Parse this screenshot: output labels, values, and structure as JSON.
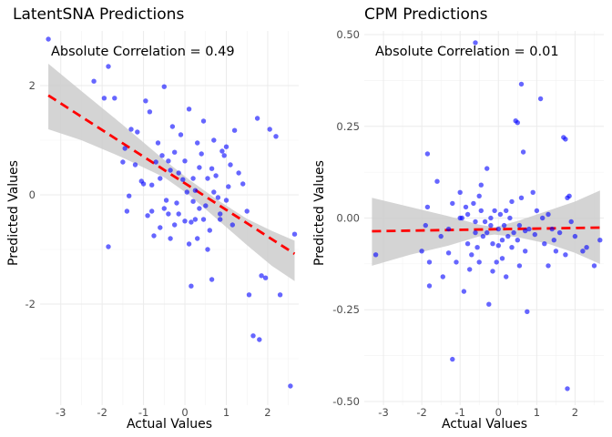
{
  "chart_data": [
    {
      "type": "scatter",
      "title": "LatentSNA Predictions",
      "xlabel": "Actual Values",
      "ylabel": "Predicted Values",
      "annotation": "Absolute Correlation = 0.49",
      "xlim": [
        -3.5,
        2.75
      ],
      "ylim": [
        -3.85,
        3.0
      ],
      "x_ticks": [
        -3,
        -2,
        -1,
        0,
        1,
        2
      ],
      "y_ticks": [
        -2,
        0,
        2
      ],
      "grid": true,
      "point_color": "#0000ff",
      "fit_line": {
        "color": "#ff0000",
        "style": "dashed",
        "x": [
          -3.3,
          2.65
        ],
        "y": [
          1.82,
          -1.08
        ]
      },
      "confidence_band": {
        "color": "#cccccc",
        "x": [
          -3.3,
          -2.5,
          -1.5,
          -0.5,
          0.1,
          0.8,
          1.5,
          2.1,
          2.65
        ],
        "upper": [
          2.4,
          1.9,
          1.28,
          0.64,
          0.28,
          -0.1,
          -0.44,
          -0.66,
          -0.84
        ],
        "lower": [
          1.2,
          1.0,
          0.68,
          0.32,
          0.0,
          -0.46,
          -0.92,
          -1.3,
          -1.58
        ]
      },
      "points": [
        [
          -3.3,
          2.85
        ],
        [
          -2.2,
          2.08
        ],
        [
          -1.95,
          1.77
        ],
        [
          -1.85,
          2.35
        ],
        [
          -1.7,
          1.77
        ],
        [
          -1.45,
          0.85
        ],
        [
          -1.3,
          1.2
        ],
        [
          -1.15,
          1.15
        ],
        [
          -1.05,
          0.25
        ],
        [
          -0.95,
          1.72
        ],
        [
          -0.85,
          1.52
        ],
        [
          -0.8,
          0.18
        ],
        [
          -0.7,
          0.6
        ],
        [
          -0.65,
          0.95
        ],
        [
          -0.6,
          0.3
        ],
        [
          -0.55,
          0.72
        ],
        [
          -0.5,
          1.98
        ],
        [
          -0.45,
          -0.1
        ],
        [
          -0.4,
          0.62
        ],
        [
          -0.35,
          0.45
        ],
        [
          -0.3,
          1.25
        ],
        [
          -0.25,
          0.78
        ],
        [
          -0.2,
          -0.15
        ],
        [
          -0.15,
          0.4
        ],
        [
          -0.1,
          1.1
        ],
        [
          -0.05,
          0.28
        ],
        [
          0.0,
          0.62
        ],
        [
          0.05,
          0.05
        ],
        [
          0.1,
          1.57
        ],
        [
          0.15,
          -0.5
        ],
        [
          0.2,
          0.3
        ],
        [
          0.25,
          -0.45
        ],
        [
          0.3,
          0.95
        ],
        [
          0.35,
          0.5
        ],
        [
          0.4,
          0.75
        ],
        [
          0.45,
          1.35
        ],
        [
          0.5,
          -0.2
        ],
        [
          0.55,
          0.3
        ],
        [
          0.6,
          -0.65
        ],
        [
          0.65,
          0.48
        ],
        [
          0.7,
          1.0
        ],
        [
          0.75,
          0.35
        ],
        [
          0.8,
          -0.05
        ],
        [
          0.85,
          -0.35
        ],
        [
          0.9,
          0.8
        ],
        [
          0.95,
          0.72
        ],
        [
          1.0,
          0.88
        ],
        [
          1.05,
          0.15
        ],
        [
          1.1,
          0.55
        ],
        [
          1.2,
          1.18
        ],
        [
          1.3,
          0.4
        ],
        [
          1.4,
          0.2
        ],
        [
          1.5,
          -0.3
        ],
        [
          1.55,
          -1.83
        ],
        [
          1.65,
          -2.58
        ],
        [
          1.75,
          1.4
        ],
        [
          1.8,
          -2.65
        ],
        [
          1.85,
          -1.48
        ],
        [
          1.95,
          -1.52
        ],
        [
          2.05,
          1.2
        ],
        [
          2.2,
          1.07
        ],
        [
          2.3,
          -1.83
        ],
        [
          2.55,
          -3.5
        ],
        [
          2.65,
          -0.72
        ],
        [
          -1.85,
          -0.95
        ],
        [
          -1.5,
          0.6
        ],
        [
          -1.4,
          -0.3
        ],
        [
          -1.2,
          0.55
        ],
        [
          -1.0,
          0.2
        ],
        [
          -0.9,
          -0.38
        ],
        [
          -0.75,
          -0.75
        ],
        [
          -0.6,
          -0.6
        ],
        [
          -0.5,
          -0.25
        ],
        [
          -0.35,
          -0.8
        ],
        [
          -0.25,
          -0.55
        ],
        [
          -0.15,
          -0.35
        ],
        [
          0.1,
          -0.9
        ],
        [
          0.3,
          -0.8
        ],
        [
          0.45,
          -0.45
        ],
        [
          0.55,
          -1.0
        ],
        [
          0.65,
          -1.55
        ],
        [
          0.85,
          -0.45
        ],
        [
          1.0,
          -0.1
        ],
        [
          1.15,
          -0.55
        ],
        [
          0.15,
          -1.67
        ],
        [
          -0.8,
          -0.3
        ],
        [
          -1.35,
          -0.02
        ],
        [
          0.2,
          -0.12
        ],
        [
          0.25,
          0.08
        ],
        [
          0.35,
          -0.25
        ],
        [
          -0.4,
          -0.35
        ],
        [
          0.7,
          0.05
        ],
        [
          0.0,
          -0.48
        ]
      ]
    },
    {
      "type": "scatter",
      "title": "CPM Predictions",
      "xlabel": "Actual Values",
      "ylabel": "Predicted Values",
      "annotation": "Absolute Correlation = 0.01",
      "xlim": [
        -3.5,
        2.75
      ],
      "ylim": [
        -0.51,
        0.51
      ],
      "x_ticks": [
        -3,
        -2,
        -1,
        0,
        1,
        2
      ],
      "y_ticks": [
        -0.5,
        -0.25,
        0.0,
        0.25,
        0.5
      ],
      "y_tick_labels": [
        "-0.50",
        "-0.25",
        "0.00",
        "0.25",
        "0.50"
      ],
      "grid": true,
      "point_color": "#0000ff",
      "fit_line": {
        "color": "#ff0000",
        "style": "dashed",
        "x": [
          -3.3,
          2.65
        ],
        "y": [
          -0.036,
          -0.026
        ]
      },
      "confidence_band": {
        "color": "#cccccc",
        "x": [
          -3.3,
          -2.3,
          -1.3,
          -0.5,
          -0.1,
          0.5,
          1.3,
          2.0,
          2.65
        ],
        "upper": [
          0.055,
          0.03,
          0.005,
          -0.018,
          -0.025,
          -0.008,
          0.02,
          0.045,
          0.075
        ],
        "lower": [
          -0.13,
          -0.1,
          -0.075,
          -0.05,
          -0.045,
          -0.052,
          -0.07,
          -0.095,
          -0.125
        ]
      },
      "points": [
        [
          -3.2,
          -0.1
        ],
        [
          -2.0,
          -0.09
        ],
        [
          -1.9,
          -0.02
        ],
        [
          -1.85,
          0.03
        ],
        [
          -1.85,
          0.175
        ],
        [
          -1.8,
          -0.12
        ],
        [
          -1.8,
          -0.185
        ],
        [
          -1.6,
          0.1
        ],
        [
          -1.5,
          -0.05
        ],
        [
          -1.45,
          -0.16
        ],
        [
          -1.3,
          -0.03
        ],
        [
          -1.2,
          -0.385
        ],
        [
          -1.2,
          0.04
        ],
        [
          -1.1,
          -0.12
        ],
        [
          -1.0,
          0.07
        ],
        [
          -0.95,
          0.0
        ],
        [
          -0.9,
          -0.2
        ],
        [
          -0.85,
          0.03
        ],
        [
          -0.8,
          -0.07
        ],
        [
          -0.75,
          -0.14
        ],
        [
          -0.7,
          -0.1
        ],
        [
          -0.65,
          0.04
        ],
        [
          -0.6,
          0.478
        ],
        [
          -0.6,
          -0.01
        ],
        [
          -0.55,
          -0.08
        ],
        [
          -0.5,
          0.06
        ],
        [
          -0.5,
          -0.12
        ],
        [
          -0.45,
          0.02
        ],
        [
          -0.4,
          -0.05
        ],
        [
          -0.35,
          -0.01
        ],
        [
          -0.3,
          0.135
        ],
        [
          -0.3,
          -0.04
        ],
        [
          -0.25,
          -0.235
        ],
        [
          -0.2,
          0.0
        ],
        [
          -0.15,
          -0.07
        ],
        [
          -0.1,
          0.02
        ],
        [
          -0.05,
          -0.12
        ],
        [
          0.0,
          -0.03
        ],
        [
          0.05,
          0.01
        ],
        [
          0.1,
          -0.06
        ],
        [
          0.15,
          -0.02
        ],
        [
          0.2,
          -0.16
        ],
        [
          0.25,
          -0.05
        ],
        [
          0.3,
          0.0
        ],
        [
          0.35,
          -0.08
        ],
        [
          0.4,
          -0.04
        ],
        [
          0.45,
          0.265
        ],
        [
          0.5,
          0.26
        ],
        [
          0.5,
          -0.06
        ],
        [
          0.55,
          -0.13
        ],
        [
          0.6,
          0.055
        ],
        [
          0.6,
          0.365
        ],
        [
          0.65,
          0.18
        ],
        [
          0.7,
          -0.09
        ],
        [
          0.75,
          -0.255
        ],
        [
          0.8,
          -0.03
        ],
        [
          0.9,
          0.07
        ],
        [
          1.0,
          0.02
        ],
        [
          1.1,
          0.325
        ],
        [
          1.15,
          0.0
        ],
        [
          1.2,
          -0.07
        ],
        [
          1.3,
          -0.13
        ],
        [
          1.4,
          -0.03
        ],
        [
          1.5,
          -0.09
        ],
        [
          1.6,
          -0.04
        ],
        [
          1.7,
          0.22
        ],
        [
          1.75,
          0.215
        ],
        [
          1.75,
          -0.1
        ],
        [
          1.8,
          0.055
        ],
        [
          1.8,
          -0.465
        ],
        [
          1.85,
          0.06
        ],
        [
          1.9,
          -0.01
        ],
        [
          2.0,
          -0.05
        ],
        [
          2.2,
          -0.09
        ],
        [
          2.3,
          -0.08
        ],
        [
          2.5,
          -0.13
        ],
        [
          2.65,
          -0.06
        ],
        [
          -1.0,
          0.0
        ],
        [
          -0.6,
          -0.04
        ],
        [
          -0.2,
          -0.02
        ],
        [
          0.2,
          0.02
        ],
        [
          0.55,
          -0.02
        ],
        [
          0.95,
          -0.045
        ],
        [
          -1.3,
          -0.095
        ],
        [
          0.0,
          -0.075
        ],
        [
          0.35,
          0.045
        ],
        [
          -0.8,
          0.01
        ],
        [
          1.3,
          0.01
        ],
        [
          0.1,
          -0.11
        ],
        [
          -0.45,
          0.09
        ],
        [
          0.7,
          -0.035
        ],
        [
          -0.15,
          -0.145
        ],
        [
          1.45,
          -0.06
        ]
      ]
    }
  ]
}
